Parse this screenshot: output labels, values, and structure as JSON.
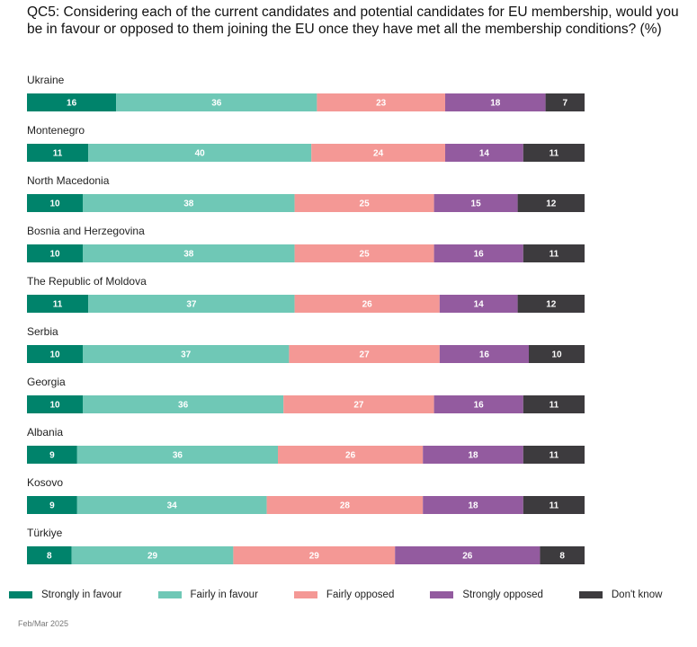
{
  "chart_data": {
    "type": "bar",
    "orientation": "horizontal-stacked-100",
    "title": "QC5: Considering each of the current candidates and potential candidates for EU membership, would you be in favour or opposed to them joining the EU once they have met all the membership conditions? (%)",
    "categories": [
      "Ukraine",
      "Montenegro",
      "North Macedonia",
      "Bosnia and Herzegovina",
      "The Republic of Moldova",
      "Serbia",
      "Georgia",
      "Albania",
      "Kosovo",
      "Türkiye"
    ],
    "series": [
      {
        "name": "Strongly in favour",
        "color": "#00836b",
        "values": [
          16,
          11,
          10,
          10,
          11,
          10,
          10,
          9,
          9,
          8
        ]
      },
      {
        "name": "Fairly in favour",
        "color": "#6fc8b6",
        "values": [
          36,
          40,
          38,
          38,
          37,
          37,
          36,
          36,
          34,
          29
        ]
      },
      {
        "name": "Fairly opposed",
        "color": "#f49895",
        "values": [
          23,
          24,
          25,
          25,
          26,
          27,
          27,
          26,
          28,
          29
        ]
      },
      {
        "name": "Strongly opposed",
        "color": "#935b9f",
        "values": [
          18,
          14,
          15,
          16,
          14,
          16,
          16,
          18,
          18,
          26
        ]
      },
      {
        "name": "Don't know",
        "color": "#3d3b3e",
        "values": [
          7,
          11,
          12,
          11,
          12,
          10,
          11,
          11,
          11,
          8
        ]
      }
    ],
    "xlabel": "",
    "ylabel": "",
    "xlim": [
      0,
      100
    ],
    "grid": false,
    "legend_position": "bottom",
    "source_note": "Feb/Mar 2025"
  }
}
